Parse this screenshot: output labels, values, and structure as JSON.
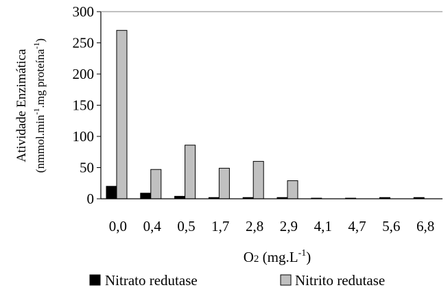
{
  "chart_data": {
    "type": "bar",
    "categories": [
      "0,0",
      "0,4",
      "0,5",
      "1,7",
      "2,8",
      "2,9",
      "4,1",
      "4,7",
      "5,6",
      "6,8"
    ],
    "series": [
      {
        "name": "Nitrato redutase",
        "values": [
          20,
          9,
          4,
          2,
          2,
          2,
          1,
          1,
          2,
          2
        ],
        "color": "#000000"
      },
      {
        "name": "Nitrito redutase",
        "values": [
          270,
          47,
          86,
          49,
          60,
          29,
          0,
          0,
          0,
          0
        ],
        "color": "#c0c0c0"
      }
    ],
    "ylim": [
      0,
      300
    ],
    "yticks": [
      "0",
      "50",
      "100",
      "150",
      "200",
      "250",
      "300"
    ],
    "ylabel_line1": "Atividade Enzimática",
    "ylabel_line2_parts": [
      "(nmmol.min",
      "-1",
      ".mg proteína",
      "-1",
      ")"
    ],
    "xlabel_parts": [
      "O",
      "2",
      " (mg.L",
      "-1",
      ")"
    ],
    "grid": false,
    "legend_placement": "bottom"
  }
}
